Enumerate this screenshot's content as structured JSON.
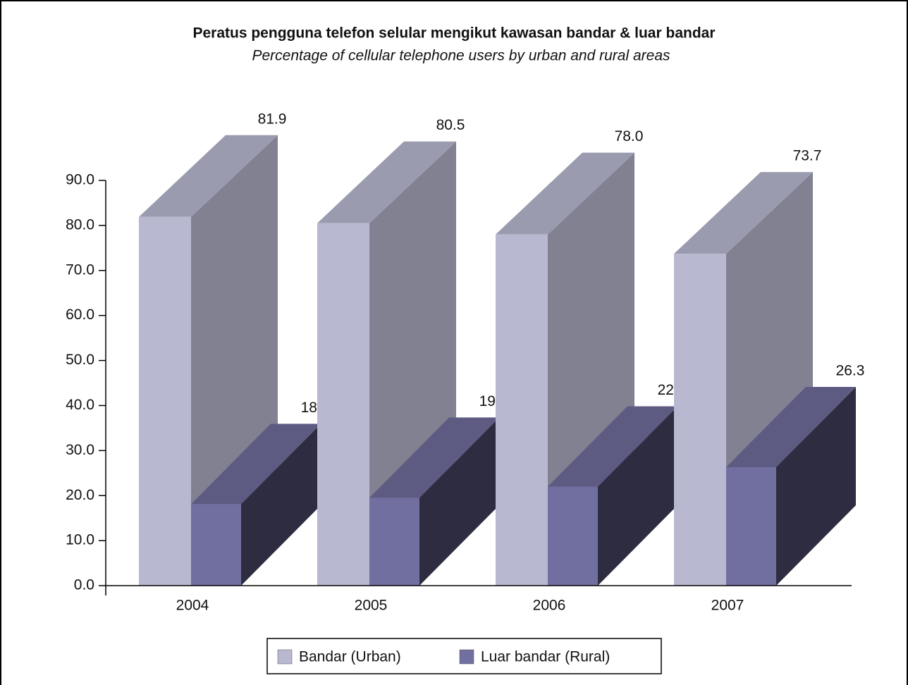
{
  "chart_data": {
    "type": "bar3d",
    "title": "Peratus pengguna telefon selular mengikut kawasan bandar & luar bandar",
    "subtitle": "Percentage of cellular telephone users by urban and rural areas",
    "categories": [
      "2004",
      "2005",
      "2006",
      "2007"
    ],
    "series": [
      {
        "name": "Bandar (Urban)",
        "color": "#b9b8d1",
        "values": [
          81.9,
          80.5,
          78.0,
          73.7
        ],
        "value_labels": [
          "81.9",
          "80.5",
          "78.0",
          "73.7"
        ]
      },
      {
        "name": "Luar bandar (Rural)",
        "color": "#716f9f",
        "values": [
          18.1,
          19.5,
          22.0,
          26.3
        ],
        "value_labels": [
          "18.1",
          "19.5",
          "22.0",
          "26.3"
        ]
      }
    ],
    "ylim": [
      0,
      90
    ],
    "yticks": [
      {
        "value": 0,
        "label": "0.0"
      },
      {
        "value": 10,
        "label": "10.0"
      },
      {
        "value": 20,
        "label": "20.0"
      },
      {
        "value": 30,
        "label": "30.0"
      },
      {
        "value": 40,
        "label": "40.0"
      },
      {
        "value": 50,
        "label": "50.0"
      },
      {
        "value": 60,
        "label": "60.0"
      },
      {
        "value": 70,
        "label": "70.0"
      },
      {
        "value": 80,
        "label": "80.0"
      },
      {
        "value": 90,
        "label": "90.0"
      }
    ],
    "legend": "bottom"
  }
}
